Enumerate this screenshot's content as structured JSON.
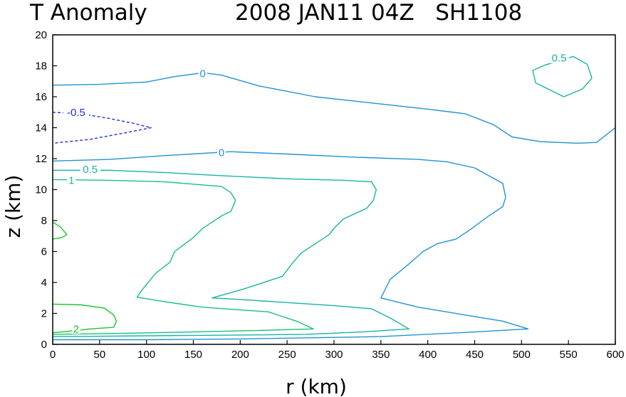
{
  "header": {
    "title_left": "T Anomaly",
    "title_right": "2008 JAN11 04Z   SH1108"
  },
  "chart_data": {
    "type": "contour",
    "xlabel": "r (km)",
    "ylabel": "z (km)",
    "xlim": [
      0,
      600
    ],
    "ylim": [
      0,
      20
    ],
    "xticks": [
      0,
      50,
      100,
      150,
      200,
      250,
      300,
      350,
      400,
      450,
      500,
      550,
      600
    ],
    "yticks": [
      0,
      2,
      4,
      6,
      8,
      10,
      12,
      14,
      16,
      18,
      20
    ],
    "colors": {
      "neg_0.5": "#1f2fd6",
      "zero": "#1f93d6",
      "pos_0.5": "#17b3a6",
      "pos_1": "#19c07a",
      "pos_2": "#19c52a"
    },
    "contours": [
      {
        "level": "0",
        "label": "0",
        "label_at": [
          160,
          17.5
        ],
        "color": "#1f93d6",
        "dashed": false,
        "points": [
          [
            0,
            16.75
          ],
          [
            50,
            16.8
          ],
          [
            100,
            16.95
          ],
          [
            130,
            17.3
          ],
          [
            160,
            17.55
          ],
          [
            180,
            17.4
          ],
          [
            220,
            16.7
          ],
          [
            280,
            16.0
          ],
          [
            340,
            15.6
          ],
          [
            400,
            15.2
          ],
          [
            440,
            14.9
          ],
          [
            470,
            14.2
          ],
          [
            490,
            13.4
          ],
          [
            520,
            13.1
          ],
          [
            560,
            13.0
          ],
          [
            580,
            13.05
          ],
          [
            600,
            14.0
          ]
        ]
      },
      {
        "level": "0",
        "label": "0",
        "label_at": [
          180,
          12.4
        ],
        "color": "#1f93d6",
        "dashed": false,
        "points": [
          [
            0,
            11.85
          ],
          [
            60,
            11.95
          ],
          [
            120,
            12.2
          ],
          [
            190,
            12.45
          ],
          [
            250,
            12.3
          ],
          [
            320,
            12.1
          ],
          [
            390,
            11.95
          ],
          [
            420,
            11.8
          ],
          [
            450,
            11.4
          ],
          [
            480,
            10.4
          ],
          [
            483,
            9.5
          ],
          [
            480,
            8.9
          ],
          [
            465,
            8.3
          ],
          [
            445,
            7.4
          ],
          [
            430,
            6.8
          ],
          [
            410,
            6.5
          ],
          [
            395,
            6.0
          ],
          [
            380,
            5.2
          ],
          [
            360,
            4.2
          ],
          [
            350,
            3.0
          ],
          [
            390,
            2.4
          ],
          [
            450,
            1.8
          ],
          [
            480,
            1.5
          ],
          [
            507,
            1.0
          ],
          [
            450,
            0.8
          ],
          [
            350,
            0.5
          ],
          [
            200,
            0.35
          ],
          [
            100,
            0.3
          ],
          [
            0,
            0.3
          ]
        ]
      },
      {
        "level": "0.5",
        "label": "0.5",
        "label_at": [
          40,
          11.3
        ],
        "color": "#17b3a6",
        "dashed": false,
        "points": [
          [
            0,
            11.25
          ],
          [
            60,
            11.25
          ],
          [
            120,
            11.1
          ],
          [
            180,
            10.9
          ],
          [
            250,
            10.7
          ],
          [
            310,
            10.6
          ],
          [
            340,
            10.5
          ],
          [
            345,
            10.0
          ],
          [
            342,
            9.3
          ],
          [
            335,
            8.8
          ],
          [
            310,
            8.1
          ],
          [
            300,
            7.5
          ],
          [
            295,
            7.1
          ],
          [
            285,
            6.7
          ],
          [
            265,
            5.9
          ],
          [
            255,
            5.2
          ],
          [
            245,
            4.4
          ],
          [
            205,
            3.6
          ],
          [
            170,
            3.0
          ],
          [
            200,
            2.9
          ],
          [
            250,
            2.7
          ],
          [
            300,
            2.5
          ],
          [
            340,
            2.3
          ],
          [
            360,
            1.7
          ],
          [
            380,
            1.0
          ],
          [
            330,
            0.8
          ],
          [
            270,
            0.65
          ],
          [
            200,
            0.6
          ],
          [
            100,
            0.55
          ],
          [
            0,
            0.5
          ]
        ]
      },
      {
        "level": "1",
        "label": "1",
        "label_at": [
          20,
          10.6
        ],
        "color": "#19c07a",
        "dashed": false,
        "points": [
          [
            0,
            10.65
          ],
          [
            60,
            10.6
          ],
          [
            120,
            10.5
          ],
          [
            180,
            10.2
          ],
          [
            190,
            9.8
          ],
          [
            195,
            9.3
          ],
          [
            190,
            8.6
          ],
          [
            180,
            8.3
          ],
          [
            170,
            7.9
          ],
          [
            160,
            7.5
          ],
          [
            150,
            6.9
          ],
          [
            130,
            6.0
          ],
          [
            125,
            5.3
          ],
          [
            110,
            4.6
          ],
          [
            95,
            3.5
          ],
          [
            90,
            3.05
          ],
          [
            120,
            2.75
          ],
          [
            160,
            2.4
          ],
          [
            230,
            2.1
          ],
          [
            260,
            1.5
          ],
          [
            278,
            1.0
          ],
          [
            220,
            0.9
          ],
          [
            150,
            0.8
          ],
          [
            60,
            0.7
          ],
          [
            0,
            0.65
          ]
        ]
      },
      {
        "level": "2",
        "label": "2",
        "label_at": [
          25,
          1.0
        ],
        "color": "#19c52a",
        "dashed": false,
        "points": [
          [
            0,
            2.6
          ],
          [
            30,
            2.55
          ],
          [
            55,
            2.35
          ],
          [
            65,
            1.9
          ],
          [
            68,
            1.5
          ],
          [
            65,
            1.1
          ],
          [
            40,
            1.0
          ],
          [
            10,
            0.8
          ],
          [
            0,
            0.75
          ]
        ]
      },
      {
        "level": "2",
        "label": "",
        "label_at": null,
        "color": "#19c52a",
        "dashed": false,
        "points": [
          [
            0,
            7.9
          ],
          [
            8,
            7.6
          ],
          [
            15,
            7.1
          ],
          [
            10,
            6.9
          ],
          [
            0,
            6.8
          ]
        ]
      },
      {
        "level": "-0.5",
        "label": "-0.5",
        "label_at": [
          25,
          15.0
        ],
        "color": "#1f2fd6",
        "dashed": true,
        "points": [
          [
            0,
            15.0
          ],
          [
            30,
            14.9
          ],
          [
            60,
            14.6
          ],
          [
            85,
            14.3
          ],
          [
            105,
            14.0
          ],
          [
            80,
            13.7
          ],
          [
            40,
            13.25
          ],
          [
            0,
            13.0
          ]
        ]
      },
      {
        "level": "0.5",
        "label": "0.5",
        "label_at": [
          540,
          18.5
        ],
        "color": "#17b3a6",
        "dashed": false,
        "points": [
          [
            525,
            18.05
          ],
          [
            555,
            18.6
          ],
          [
            570,
            18.1
          ],
          [
            575,
            17.2
          ],
          [
            565,
            16.5
          ],
          [
            545,
            16.0
          ],
          [
            515,
            16.9
          ],
          [
            512,
            17.7
          ],
          [
            525,
            18.05
          ]
        ]
      }
    ]
  }
}
